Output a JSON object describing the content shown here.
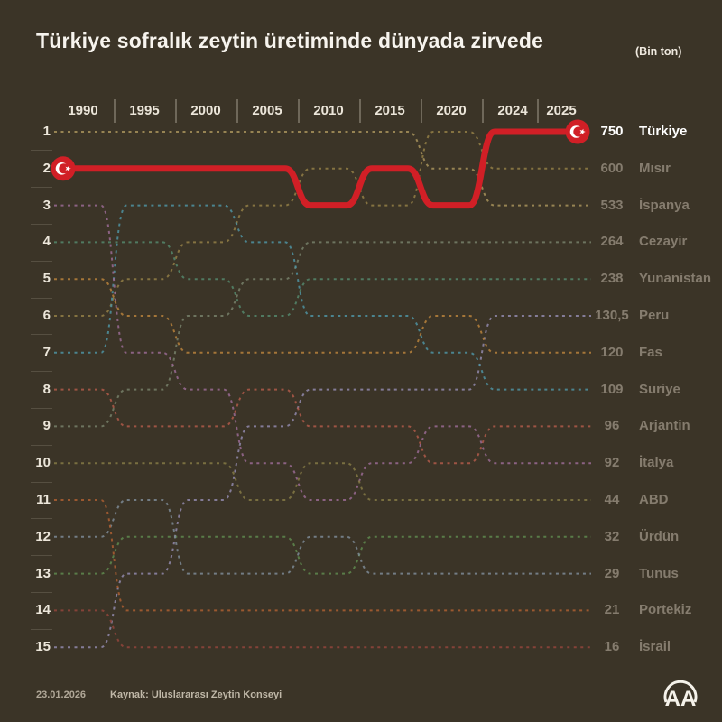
{
  "title": "Türkiye sofralık zeytin üretiminde dünyada zirvede",
  "unit_label": "(Bin ton)",
  "footer": {
    "date": "23.01.2026",
    "source": "Kaynak: Uluslararası Zeytin Konseyi"
  },
  "logo_text": "AA",
  "colors": {
    "background": "#3b3427",
    "accent_red": "#d11f26",
    "text_light": "#f7f4ee",
    "text_muted": "#857c6e"
  },
  "chart_data": {
    "type": "line",
    "subtype": "bump-rank-chart",
    "years": [
      "1990",
      "1995",
      "2000",
      "2005",
      "2010",
      "2015",
      "2020",
      "2024",
      "2025"
    ],
    "rank_axis": [
      "1",
      "2",
      "3",
      "4",
      "5",
      "6",
      "7",
      "8",
      "9",
      "10",
      "11",
      "12",
      "13",
      "14",
      "15"
    ],
    "legend_position": "right",
    "series": [
      {
        "name": "Türkiye",
        "value": "750",
        "final_rank": 1,
        "color": "#d11f26",
        "highlight": true,
        "ranks": [
          2,
          2,
          2,
          2,
          3,
          2,
          3,
          1,
          1
        ]
      },
      {
        "name": "Mısır",
        "value": "600",
        "final_rank": 2,
        "color": "#937f46",
        "highlight": false,
        "ranks": [
          6,
          5,
          4,
          3,
          2,
          3,
          1,
          2,
          2
        ]
      },
      {
        "name": "İspanya",
        "value": "533",
        "final_rank": 3,
        "color": "#a8935c",
        "highlight": false,
        "ranks": [
          1,
          1,
          1,
          1,
          1,
          1,
          2,
          3,
          3
        ]
      },
      {
        "name": "Cezayir",
        "value": "264",
        "final_rank": 4,
        "color": "#77806a",
        "highlight": false,
        "ranks": [
          9,
          8,
          6,
          5,
          4,
          4,
          4,
          4,
          4
        ]
      },
      {
        "name": "Yunanistan",
        "value": "238",
        "final_rank": 5,
        "color": "#55876c",
        "highlight": false,
        "ranks": [
          4,
          4,
          5,
          6,
          5,
          5,
          5,
          5,
          5
        ]
      },
      {
        "name": "Peru",
        "value": "130,5",
        "final_rank": 6,
        "color": "#9289ad",
        "highlight": false,
        "ranks": [
          15,
          13,
          11,
          9,
          8,
          8,
          8,
          6,
          6
        ]
      },
      {
        "name": "Fas",
        "value": "120",
        "final_rank": 7,
        "color": "#b8823c",
        "highlight": false,
        "ranks": [
          5,
          6,
          7,
          7,
          7,
          7,
          6,
          7,
          7
        ]
      },
      {
        "name": "Suriye",
        "value": "109",
        "final_rank": 8,
        "color": "#4f93a2",
        "highlight": false,
        "ranks": [
          7,
          3,
          3,
          4,
          6,
          6,
          7,
          8,
          8
        ]
      },
      {
        "name": "Arjantin",
        "value": "96",
        "final_rank": 9,
        "color": "#b05a4a",
        "highlight": false,
        "ranks": [
          8,
          9,
          9,
          8,
          9,
          9,
          10,
          9,
          9
        ]
      },
      {
        "name": "İtalya",
        "value": "92",
        "final_rank": 10,
        "color": "#9a6b94",
        "highlight": false,
        "ranks": [
          3,
          7,
          8,
          10,
          11,
          10,
          9,
          10,
          10
        ]
      },
      {
        "name": "ABD",
        "value": "44",
        "final_rank": 11,
        "color": "#857a45",
        "highlight": false,
        "ranks": [
          10,
          10,
          10,
          11,
          10,
          11,
          11,
          11,
          11
        ]
      },
      {
        "name": "Ürdün",
        "value": "32",
        "final_rank": 12,
        "color": "#5f8a4f",
        "highlight": false,
        "ranks": [
          13,
          12,
          12,
          12,
          13,
          12,
          12,
          12,
          12
        ]
      },
      {
        "name": "Tunus",
        "value": "29",
        "final_rank": 13,
        "color": "#7e8b96",
        "highlight": false,
        "ranks": [
          12,
          11,
          13,
          13,
          12,
          13,
          13,
          13,
          13
        ]
      },
      {
        "name": "Portekiz",
        "value": "21",
        "final_rank": 14,
        "color": "#ad5f33",
        "highlight": false,
        "ranks": [
          11,
          14,
          14,
          14,
          14,
          14,
          14,
          14,
          14
        ]
      },
      {
        "name": "İsrail",
        "value": "16",
        "final_rank": 15,
        "color": "#93453c",
        "highlight": false,
        "ranks": [
          14,
          15,
          15,
          15,
          15,
          15,
          15,
          15,
          15
        ]
      }
    ]
  }
}
